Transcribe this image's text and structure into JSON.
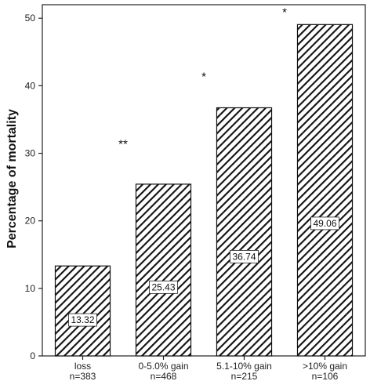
{
  "chart_data": {
    "type": "bar",
    "ylabel": "Percentage of mortality",
    "xlabel": "",
    "ylim": [
      0,
      52
    ],
    "yticks": [
      0,
      10,
      20,
      30,
      40,
      50
    ],
    "categories": [
      {
        "label": "loss",
        "n": "n=383"
      },
      {
        "label": "0-5.0% gain",
        "n": "n=468"
      },
      {
        "label": "5.1-10% gain",
        "n": "n=215"
      },
      {
        "label": ">10% gain",
        "n": "n=106"
      }
    ],
    "values": [
      13.32,
      25.43,
      36.74,
      49.06
    ],
    "value_labels": [
      "13.32",
      "25.43",
      "36.74",
      "49.06"
    ],
    "significance": [
      {
        "text": "**",
        "between": [
          0,
          1
        ],
        "y": 31.5
      },
      {
        "text": "*",
        "between": [
          1,
          2
        ],
        "y": 41.5
      },
      {
        "text": "*",
        "between": [
          2,
          3
        ],
        "y": 51
      }
    ],
    "bar_fill": "hatched",
    "bar_color": "#111111",
    "grid": false,
    "legend": "none"
  }
}
